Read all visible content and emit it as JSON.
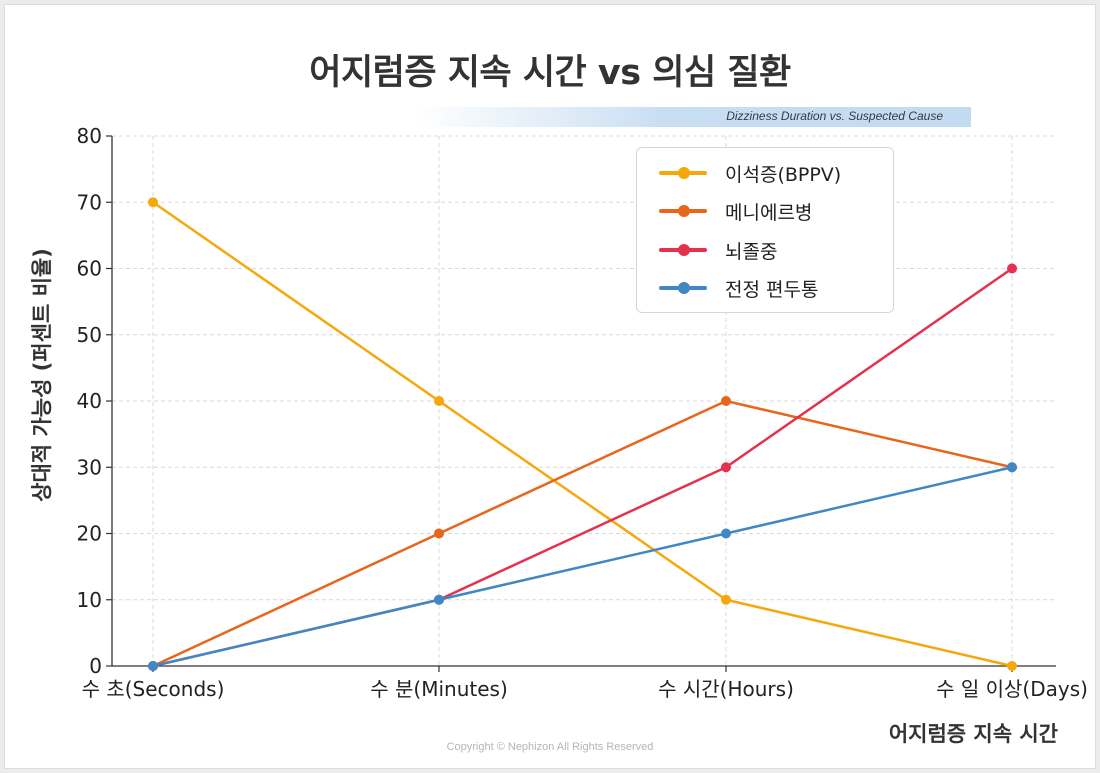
{
  "page": {
    "title": "어지럼증 지속 시간 vs 의심 질환",
    "subtitle": "Dizziness Duration vs. Suspected Cause",
    "footer": "Copyright © Nephizon All Rights Reserved"
  },
  "chart_data": {
    "type": "line",
    "title": "어지럼증 지속 시간 vs 의심 질환",
    "subtitle": "Dizziness Duration vs. Suspected Cause",
    "xlabel": "어지럼증 지속 시간",
    "ylabel": "상대적 가능성 (퍼센트 비율)",
    "categories": [
      "수 초(Seconds)",
      "수 분(Minutes)",
      "수 시간(Hours)",
      "수 일 이상(Days)"
    ],
    "ylim": [
      0,
      80
    ],
    "yticks": [
      "0",
      "10",
      "20",
      "30",
      "40",
      "50",
      "60",
      "70",
      "80"
    ],
    "grid": true,
    "legend_position": "top-right",
    "series": [
      {
        "name": "이석증(BPPV)",
        "color": "#f5a80c",
        "values": [
          70,
          40,
          10,
          0
        ]
      },
      {
        "name": "메니에르병",
        "color": "#e8661b",
        "values": [
          0,
          20,
          40,
          30
        ]
      },
      {
        "name": "뇌졸중",
        "color": "#e6304f",
        "values": [
          0,
          10,
          30,
          60
        ]
      },
      {
        "name": "전정 편두통",
        "color": "#3f88c5",
        "values": [
          0,
          10,
          20,
          30
        ]
      }
    ]
  }
}
